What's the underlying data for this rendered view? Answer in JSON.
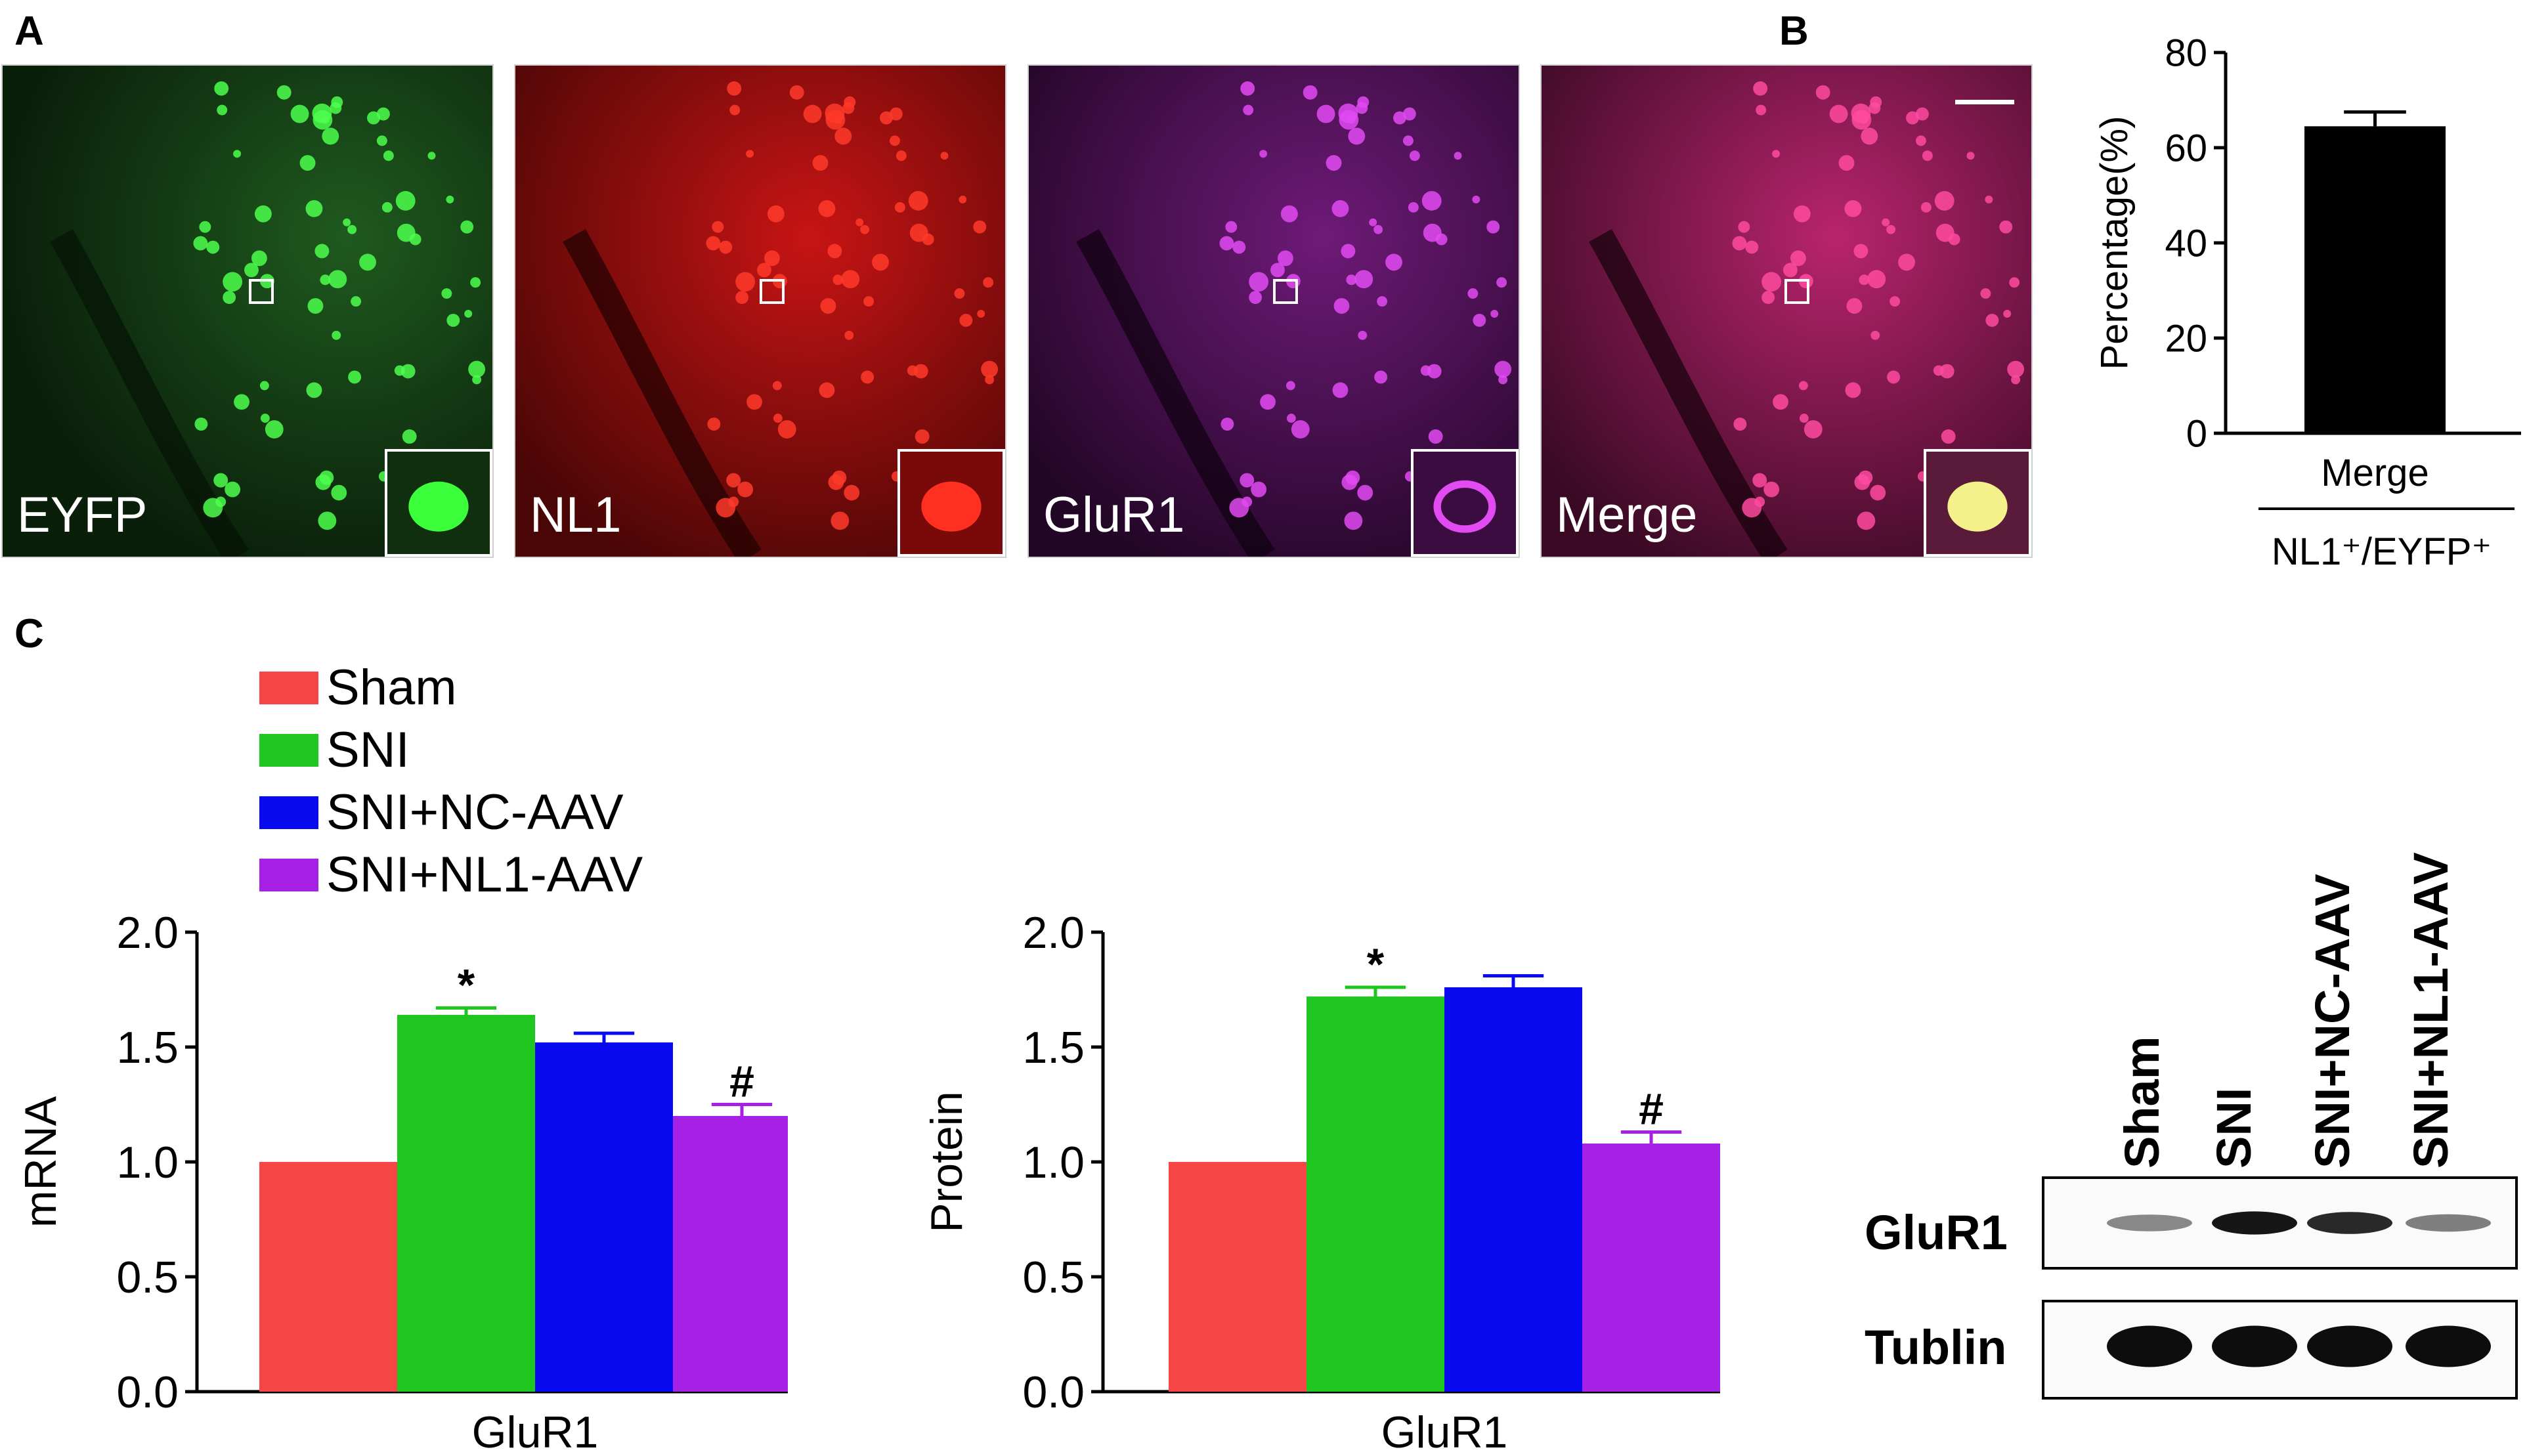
{
  "panel_letters": {
    "a": "A",
    "b": "B",
    "c": "C"
  },
  "micrographs": [
    {
      "label": "EYFP",
      "color": "#28e628"
    },
    {
      "label": "NL1",
      "color": "#ff2a1e"
    },
    {
      "label": "GluR1",
      "color": "#d238e6"
    },
    {
      "label": "Merge",
      "color": "#ff3a8a"
    }
  ],
  "legend": [
    {
      "label": "Sham",
      "color": "#f54545"
    },
    {
      "label": "SNI",
      "color": "#1fc61f"
    },
    {
      "label": "SNI+NC-AAV",
      "color": "#0a0af0"
    },
    {
      "label": "SNI+NL1-AAV",
      "color": "#a620e6"
    }
  ],
  "blot": {
    "lanes": [
      "Sham",
      "SNI",
      "SNI+NC-AAV",
      "SNI+NL1-AAV"
    ],
    "rows": [
      "GluR1",
      "Tublin"
    ],
    "glur1_intensity": [
      0.35,
      0.95,
      0.85,
      0.4
    ],
    "tublin_intensity": [
      1,
      1,
      1,
      1
    ]
  },
  "chart_data": [
    {
      "type": "bar",
      "title": "",
      "ylabel": "Percentage(%)",
      "categories": [
        "Merge"
      ],
      "xsublabel": "NL1⁺/EYFP⁺",
      "values": [
        64.5
      ],
      "errors": [
        3
      ],
      "colors": [
        "#000000"
      ],
      "ylim": [
        0,
        80
      ],
      "yticks": [
        "0",
        "20",
        "40",
        "60",
        "80"
      ]
    },
    {
      "type": "bar",
      "title": "",
      "ylabel": "mRNA",
      "xlabel": "GluR1",
      "categories": [
        "Sham",
        "SNI",
        "SNI+NC-AAV",
        "SNI+NL1-AAV"
      ],
      "values": [
        1.0,
        1.64,
        1.52,
        1.2
      ],
      "errors": [
        0,
        0.03,
        0.04,
        0.05
      ],
      "annotations": [
        "",
        "*",
        "",
        "#"
      ],
      "colors": [
        "#f54545",
        "#1fc61f",
        "#0a0af0",
        "#a620e6"
      ],
      "ylim": [
        0,
        2.0
      ],
      "yticks": [
        "0.0",
        "0.5",
        "1.0",
        "1.5",
        "2.0"
      ]
    },
    {
      "type": "bar",
      "title": "",
      "ylabel": "Protein",
      "xlabel": "GluR1",
      "categories": [
        "Sham",
        "SNI",
        "SNI+NC-AAV",
        "SNI+NL1-AAV"
      ],
      "values": [
        1.0,
        1.72,
        1.76,
        1.08
      ],
      "errors": [
        0,
        0.04,
        0.05,
        0.05
      ],
      "annotations": [
        "",
        "*",
        "",
        "#"
      ],
      "colors": [
        "#f54545",
        "#1fc61f",
        "#0a0af0",
        "#a620e6"
      ],
      "ylim": [
        0,
        2.0
      ],
      "yticks": [
        "0.0",
        "0.5",
        "1.0",
        "1.5",
        "2.0"
      ]
    }
  ]
}
